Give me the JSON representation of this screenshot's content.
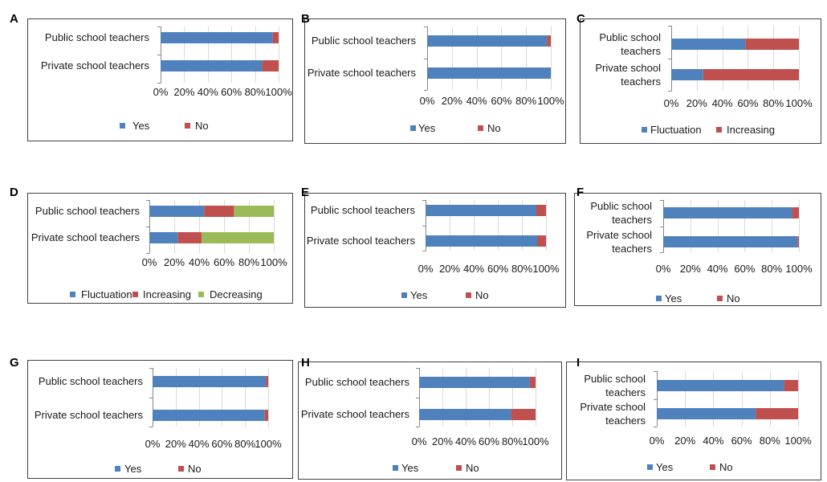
{
  "colors": {
    "Yes": "#4F81BD",
    "No": "#C0504D",
    "Fluctuation": "#4F81BD",
    "Increasing": "#C0504D",
    "Decreasing": "#9BBB59"
  },
  "chart_data": [
    {
      "panel": "A",
      "type": "bar",
      "orientation": "horizontal",
      "stacked": true,
      "categories": [
        "Public school teachers",
        "Private school teachers"
      ],
      "series": [
        {
          "name": "Yes",
          "values": [
            95,
            86
          ]
        },
        {
          "name": "No",
          "values": [
            5,
            14
          ]
        }
      ],
      "xlim": [
        0,
        100
      ],
      "ticks": [
        "0%",
        "20%",
        "40%",
        "60%",
        "80%",
        "100%"
      ],
      "legend": "bottom"
    },
    {
      "panel": "B",
      "type": "bar",
      "orientation": "horizontal",
      "stacked": true,
      "categories": [
        "Public school teachers",
        "Private school teachers"
      ],
      "series": [
        {
          "name": "Yes",
          "values": [
            97,
            100
          ]
        },
        {
          "name": "No",
          "values": [
            3,
            0
          ]
        }
      ],
      "xlim": [
        0,
        100
      ],
      "ticks": [
        "0%",
        "20%",
        "40%",
        "60%",
        "80%",
        "100%"
      ],
      "legend": "bottom"
    },
    {
      "panel": "C",
      "type": "bar",
      "orientation": "horizontal",
      "stacked": true,
      "categories": [
        "Public school teachers",
        "Private school teachers"
      ],
      "series": [
        {
          "name": "Fluctuation",
          "values": [
            58,
            25
          ]
        },
        {
          "name": "Increasing",
          "values": [
            42,
            75
          ]
        }
      ],
      "xlim": [
        0,
        100
      ],
      "ticks": [
        "0%",
        "20%",
        "40%",
        "60%",
        "80%",
        "100%"
      ],
      "legend": "bottom"
    },
    {
      "panel": "D",
      "type": "bar",
      "orientation": "horizontal",
      "stacked": true,
      "categories": [
        "Public school teachers",
        "Private school teachers"
      ],
      "series": [
        {
          "name": "Fluctuation",
          "values": [
            44,
            23
          ]
        },
        {
          "name": "Increasing",
          "values": [
            24,
            19
          ]
        },
        {
          "name": "Decreasing",
          "values": [
            32,
            58
          ]
        }
      ],
      "xlim": [
        0,
        100
      ],
      "ticks": [
        "0%",
        "20%",
        "40%",
        "60%",
        "80%",
        "100%"
      ],
      "legend": "bottom"
    },
    {
      "panel": "E",
      "type": "bar",
      "orientation": "horizontal",
      "stacked": true,
      "categories": [
        "Public school teachers",
        "Private school teachers"
      ],
      "series": [
        {
          "name": "Yes",
          "values": [
            92,
            93
          ]
        },
        {
          "name": "No",
          "values": [
            8,
            7
          ]
        }
      ],
      "xlim": [
        0,
        100
      ],
      "ticks": [
        "0%",
        "20%",
        "40%",
        "60%",
        "80%",
        "100%"
      ],
      "legend": "bottom"
    },
    {
      "panel": "F",
      "type": "bar",
      "orientation": "horizontal",
      "stacked": true,
      "categories": [
        "Public school teachers",
        "Private school teachers"
      ],
      "series": [
        {
          "name": "Yes",
          "values": [
            95,
            99
          ]
        },
        {
          "name": "No",
          "values": [
            5,
            1
          ]
        }
      ],
      "xlim": [
        0,
        100
      ],
      "ticks": [
        "0%",
        "20%",
        "40%",
        "60%",
        "80%",
        "100%"
      ],
      "legend": "bottom"
    },
    {
      "panel": "G",
      "type": "bar",
      "orientation": "horizontal",
      "stacked": true,
      "categories": [
        "Public school teachers",
        "Private school teachers"
      ],
      "series": [
        {
          "name": "Yes",
          "values": [
            98,
            97
          ]
        },
        {
          "name": "No",
          "values": [
            2,
            3
          ]
        }
      ],
      "xlim": [
        0,
        100
      ],
      "ticks": [
        "0%",
        "20%",
        "40%",
        "60%",
        "80%",
        "100%"
      ],
      "legend": "bottom"
    },
    {
      "panel": "H",
      "type": "bar",
      "orientation": "horizontal",
      "stacked": true,
      "categories": [
        "Public school teachers",
        "Private school teachers"
      ],
      "series": [
        {
          "name": "Yes",
          "values": [
            95,
            79
          ]
        },
        {
          "name": "No",
          "values": [
            5,
            21
          ]
        }
      ],
      "xlim": [
        0,
        100
      ],
      "ticks": [
        "0%",
        "20%",
        "40%",
        "60%",
        "80%",
        "100%"
      ],
      "legend": "bottom"
    },
    {
      "panel": "I",
      "type": "bar",
      "orientation": "horizontal",
      "stacked": true,
      "categories": [
        "Public school teachers",
        "Private school teachers"
      ],
      "series": [
        {
          "name": "Yes",
          "values": [
            90,
            70
          ]
        },
        {
          "name": "No",
          "values": [
            10,
            30
          ]
        }
      ],
      "xlim": [
        0,
        100
      ],
      "ticks": [
        "0%",
        "20%",
        "40%",
        "60%",
        "80%",
        "100%"
      ],
      "legend": "bottom"
    }
  ]
}
